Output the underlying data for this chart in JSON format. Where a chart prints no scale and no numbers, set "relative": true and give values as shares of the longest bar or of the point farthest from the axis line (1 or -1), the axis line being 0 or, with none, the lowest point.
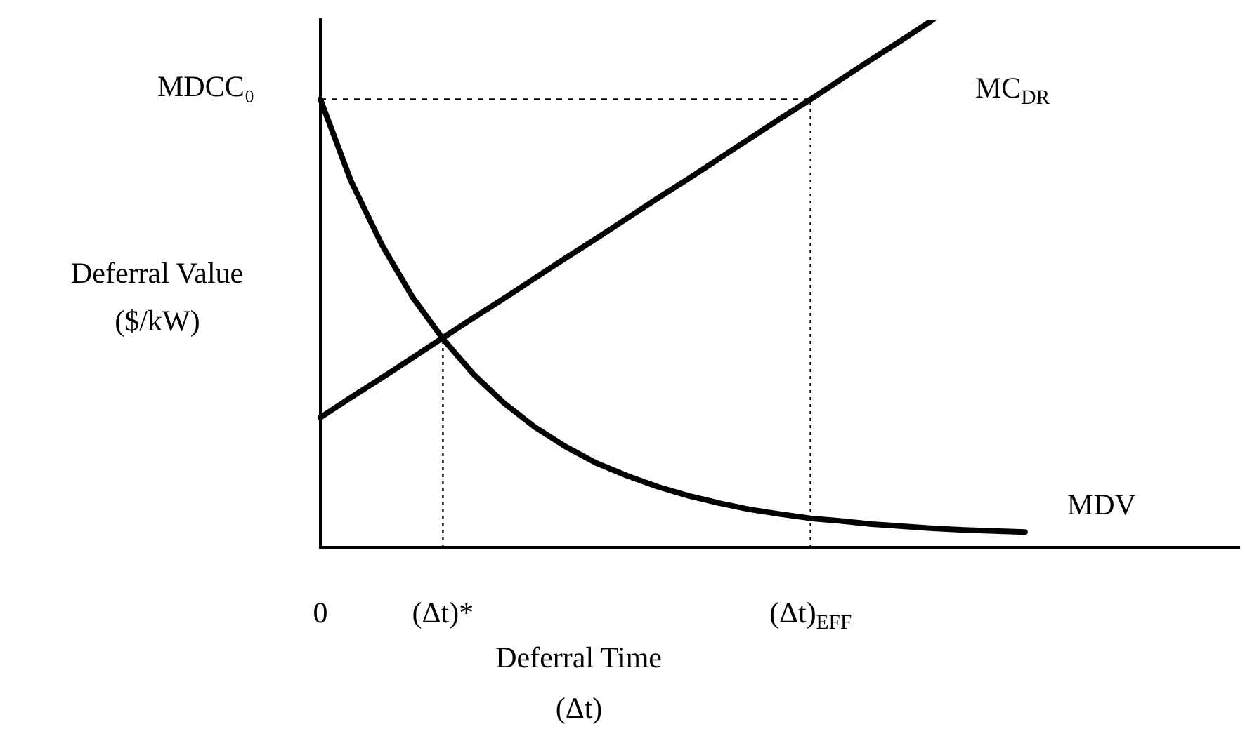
{
  "chart_data": {
    "type": "line",
    "relative": true,
    "xlabel": "Deferral Time\n(Δt)",
    "ylabel": "Deferral Value\n($/kW)",
    "categories": [
      "0",
      null,
      null,
      null,
      "(Δt)*",
      null,
      null,
      null,
      null,
      null,
      null,
      null,
      null,
      null,
      null,
      null,
      "(Δt)$_{EFF}$",
      null,
      null,
      null,
      null,
      null,
      null,
      null,
      null,
      null,
      null,
      null,
      null,
      null,
      null
    ],
    "series": [
      {
        "name": "MC$_{DR}$",
        "color": "#000000",
        "values": [
          0.246,
          0.284,
          0.321,
          0.359,
          0.397,
          0.435,
          0.472,
          0.51,
          0.548,
          0.585,
          0.623,
          0.661,
          0.698,
          0.736,
          0.774,
          0.812,
          0.849,
          0.887,
          0.925,
          0.962,
          1.0,
          null,
          null,
          null,
          null,
          null,
          null,
          null,
          null,
          null,
          null
        ]
      },
      {
        "name": "MDV",
        "color": "#000000",
        "values": [
          0.849,
          0.694,
          0.574,
          0.475,
          0.395,
          0.328,
          0.273,
          0.228,
          0.191,
          0.16,
          0.136,
          0.115,
          0.098,
          0.084,
          0.072,
          0.063,
          0.055,
          0.05,
          0.044,
          0.04,
          0.036,
          0.033,
          0.031,
          0.029,
          null,
          null,
          null,
          null,
          null,
          null,
          null
        ]
      }
    ],
    "ref_lines": [
      {
        "axis": "x",
        "value": "(Δt)*",
        "line_style": "dotted"
      },
      {
        "axis": "x",
        "value": "(Δt)$_{EFF}$",
        "line_style": "dotted"
      },
      {
        "axis": "y",
        "value": 0.849,
        "label": "MDCC₀",
        "line_style": "dashed"
      }
    ],
    "legend": false,
    "grid": false,
    "marker": "none",
    "line_style": "solid"
  }
}
